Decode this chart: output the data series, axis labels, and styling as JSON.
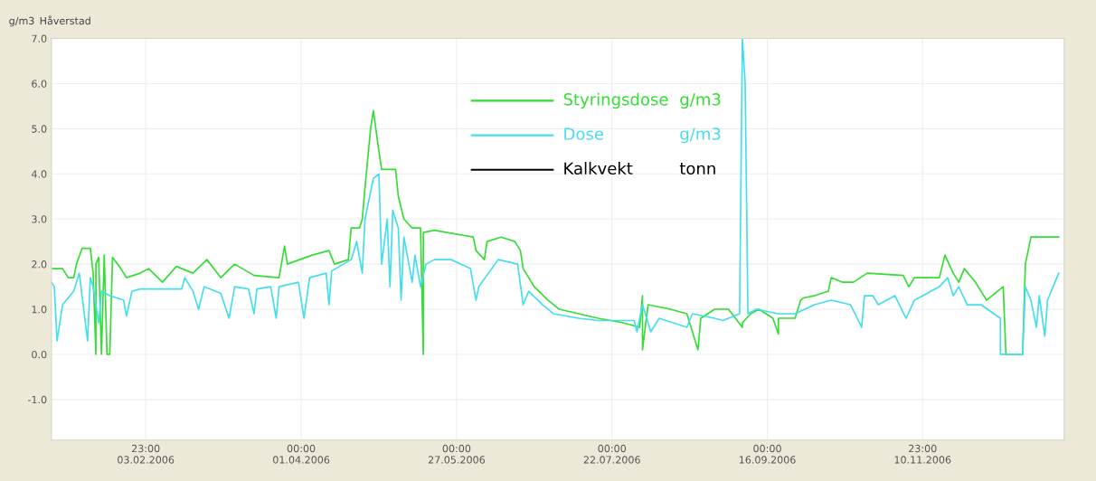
{
  "chart_data": {
    "type": "line",
    "title": "Håverstad",
    "ylabel": "g/m3",
    "xlim": [
      "2006-01-01",
      "2007-01-01"
    ],
    "xticks": [
      {
        "value": "2006-02-03T23:00",
        "label": "23:00\n03.02.2006"
      },
      {
        "value": "2006-04-01T00:00",
        "label": "00:00\n01.04.2006"
      },
      {
        "value": "2006-05-27T00:00",
        "label": "00:00\n27.05.2006"
      },
      {
        "value": "2006-07-22T00:00",
        "label": "00:00\n22.07.2006"
      },
      {
        "value": "2006-09-16T00:00",
        "label": "00:00\n16.09.2006"
      },
      {
        "value": "2006-11-10T23:00",
        "label": "23:00\n10.11.2006"
      }
    ],
    "ylim": [
      -1.9,
      7.0
    ],
    "yticks": [
      {
        "value": -1,
        "label": "-1.0"
      },
      {
        "value": 0,
        "label": "0.0"
      },
      {
        "value": 1,
        "label": "1.0"
      },
      {
        "value": 2,
        "label": "2.0"
      },
      {
        "value": 3,
        "label": "3.0"
      },
      {
        "value": 4,
        "label": "4.0"
      },
      {
        "value": 5,
        "label": "5.0"
      },
      {
        "value": 6,
        "label": "6.0"
      },
      {
        "value": 7,
        "label": "7.0"
      }
    ],
    "grid": true,
    "legend": "top",
    "marker": "none",
    "line_style": "solid",
    "series": [
      {
        "name": "Styringsdose",
        "color": "#33dd33",
        "x": [
          "2006-01-01",
          "2006-01-05",
          "2006-01-07",
          "2006-01-09",
          "2006-01-10",
          "2006-01-12",
          "2006-01-15",
          "2006-01-16",
          "2006-01-17",
          "2006-01-17",
          "2006-01-18",
          "2006-01-19",
          "2006-01-20",
          "2006-01-21",
          "2006-01-22",
          "2006-01-23",
          "2006-01-26",
          "2006-01-28",
          "2006-02-02",
          "2006-02-05",
          "2006-02-10",
          "2006-02-15",
          "2006-02-21",
          "2006-02-26",
          "2006-03-03",
          "2006-03-08",
          "2006-03-15",
          "2006-03-24",
          "2006-03-26",
          "2006-03-27",
          "2006-04-05",
          "2006-04-11",
          "2006-04-13",
          "2006-04-18",
          "2006-04-19",
          "2006-04-22",
          "2006-04-23",
          "2006-04-24",
          "2006-04-26",
          "2006-04-27",
          "2006-04-29",
          "2006-04-30",
          "2006-05-05",
          "2006-05-06",
          "2006-05-08",
          "2006-05-11",
          "2006-05-14",
          "2006-05-15",
          "2006-05-15",
          "2006-05-19",
          "2006-06-02",
          "2006-06-03",
          "2006-06-06",
          "2006-06-07",
          "2006-06-12",
          "2006-06-17",
          "2006-06-19",
          "2006-06-20",
          "2006-06-24",
          "2006-06-29",
          "2006-07-03",
          "2006-07-10",
          "2006-07-17",
          "2006-07-26",
          "2006-08-01",
          "2006-08-02",
          "2006-08-02",
          "2006-08-04",
          "2006-08-12",
          "2006-08-18",
          "2006-08-22",
          "2006-08-23",
          "2006-08-28",
          "2006-09-02",
          "2006-09-07",
          "2006-09-07",
          "2006-09-10",
          "2006-09-13",
          "2006-09-18",
          "2006-09-20",
          "2006-09-20",
          "2006-09-26",
          "2006-09-28",
          "2006-09-29",
          "2006-10-03",
          "2006-10-08",
          "2006-10-09",
          "2006-10-13",
          "2006-10-17",
          "2006-10-22",
          "2006-11-04",
          "2006-11-06",
          "2006-11-08",
          "2006-11-17",
          "2006-11-19",
          "2006-11-22",
          "2006-11-24",
          "2006-11-26",
          "2006-11-30",
          "2006-12-04",
          "2006-12-10",
          "2006-12-11",
          "2006-12-17",
          "2006-12-18",
          "2006-12-20",
          "2006-12-30"
        ],
        "values": [
          1.9,
          1.9,
          1.7,
          1.7,
          2.0,
          2.35,
          2.35,
          1.8,
          0.0,
          2.0,
          2.15,
          0.0,
          2.2,
          0.0,
          0.0,
          2.15,
          1.9,
          1.7,
          1.8,
          1.9,
          1.6,
          1.95,
          1.8,
          2.1,
          1.7,
          2.0,
          1.75,
          1.7,
          2.4,
          2.0,
          2.2,
          2.3,
          2.0,
          2.1,
          2.8,
          2.8,
          3.0,
          3.7,
          5.0,
          5.4,
          4.5,
          4.1,
          4.1,
          3.5,
          3.0,
          2.8,
          2.8,
          0.0,
          2.7,
          2.75,
          2.6,
          2.3,
          2.1,
          2.5,
          2.6,
          2.5,
          2.3,
          1.9,
          1.5,
          1.2,
          1.0,
          0.9,
          0.8,
          0.7,
          0.6,
          1.3,
          0.1,
          1.1,
          1.0,
          0.9,
          0.1,
          0.8,
          1.0,
          1.0,
          0.6,
          0.7,
          0.9,
          1.0,
          0.8,
          0.45,
          0.8,
          0.8,
          1.2,
          1.25,
          1.3,
          1.4,
          1.7,
          1.6,
          1.6,
          1.8,
          1.75,
          1.5,
          1.7,
          1.7,
          2.2,
          1.8,
          1.6,
          1.9,
          1.6,
          1.2,
          1.5,
          0.0,
          0.0,
          2.0,
          2.6,
          2.6
        ]
      },
      {
        "name": "Dose",
        "color": "#44ddee",
        "x": [
          "2006-01-01",
          "2006-01-02",
          "2006-01-03",
          "2006-01-05",
          "2006-01-09",
          "2006-01-11",
          "2006-01-12",
          "2006-01-14",
          "2006-01-15",
          "2006-01-16",
          "2006-01-18",
          "2006-01-19",
          "2006-01-22",
          "2006-01-27",
          "2006-01-28",
          "2006-01-30",
          "2006-02-02",
          "2006-02-17",
          "2006-02-18",
          "2006-02-21",
          "2006-02-23",
          "2006-02-25",
          "2006-03-03",
          "2006-03-06",
          "2006-03-08",
          "2006-03-13",
          "2006-03-15",
          "2006-03-16",
          "2006-03-21",
          "2006-03-23",
          "2006-03-24",
          "2006-03-31",
          "2006-04-02",
          "2006-04-04",
          "2006-04-10",
          "2006-04-11",
          "2006-04-12",
          "2006-04-19",
          "2006-04-21",
          "2006-04-23",
          "2006-04-24",
          "2006-04-27",
          "2006-04-29",
          "2006-04-30",
          "2006-05-02",
          "2006-05-03",
          "2006-05-04",
          "2006-05-06",
          "2006-05-07",
          "2006-05-08",
          "2006-05-11",
          "2006-05-12",
          "2006-05-14",
          "2006-05-16",
          "2006-05-19",
          "2006-05-25",
          "2006-06-01",
          "2006-06-03",
          "2006-06-04",
          "2006-06-11",
          "2006-06-18",
          "2006-06-20",
          "2006-06-22",
          "2006-06-27",
          "2006-07-01",
          "2006-07-10",
          "2006-07-17",
          "2006-07-30",
          "2006-07-31",
          "2006-08-02",
          "2006-08-05",
          "2006-08-08",
          "2006-08-18",
          "2006-08-20",
          "2006-08-28",
          "2006-08-31",
          "2006-09-06",
          "2006-09-07",
          "2006-09-08",
          "2006-09-09",
          "2006-09-12",
          "2006-09-20",
          "2006-09-26",
          "2006-10-03",
          "2006-10-09",
          "2006-10-16",
          "2006-10-20",
          "2006-10-21",
          "2006-10-24",
          "2006-10-26",
          "2006-11-01",
          "2006-11-05",
          "2006-11-08",
          "2006-11-17",
          "2006-11-20",
          "2006-11-22",
          "2006-11-24",
          "2006-11-27",
          "2006-12-02",
          "2006-12-09",
          "2006-12-09",
          "2006-12-17",
          "2006-12-18",
          "2006-12-20",
          "2006-12-22",
          "2006-12-23",
          "2006-12-25",
          "2006-12-26",
          "2006-12-30"
        ],
        "values": [
          1.6,
          1.5,
          0.3,
          1.1,
          1.4,
          1.8,
          1.3,
          0.3,
          1.7,
          1.5,
          0.7,
          1.4,
          1.3,
          1.2,
          0.85,
          1.4,
          1.45,
          1.45,
          1.7,
          1.4,
          1.0,
          1.5,
          1.35,
          0.8,
          1.5,
          1.45,
          0.9,
          1.45,
          1.5,
          0.8,
          1.5,
          1.6,
          0.8,
          1.7,
          1.8,
          1.1,
          1.85,
          2.1,
          2.5,
          1.8,
          3.0,
          3.9,
          4.0,
          2.0,
          3.0,
          1.5,
          3.2,
          2.8,
          1.2,
          2.6,
          1.6,
          2.2,
          1.5,
          2.0,
          2.1,
          2.1,
          1.9,
          1.2,
          1.5,
          2.1,
          2.0,
          1.1,
          1.4,
          1.1,
          0.9,
          0.8,
          0.75,
          0.75,
          0.5,
          1.1,
          0.5,
          0.8,
          0.6,
          0.9,
          0.8,
          0.75,
          0.9,
          7.0,
          6.0,
          0.9,
          1.0,
          0.9,
          0.9,
          1.1,
          1.2,
          1.1,
          0.6,
          1.3,
          1.3,
          1.1,
          1.3,
          0.8,
          1.2,
          1.5,
          1.7,
          1.3,
          1.5,
          1.1,
          1.1,
          0.8,
          0.0,
          0.0,
          1.5,
          1.2,
          0.6,
          1.3,
          0.4,
          1.2,
          1.8
        ]
      },
      {
        "name": "Kalkvekt",
        "color": "#000000"
      }
    ],
    "annotations": [
      "g/m3",
      "g/m3",
      "tonn"
    ]
  }
}
